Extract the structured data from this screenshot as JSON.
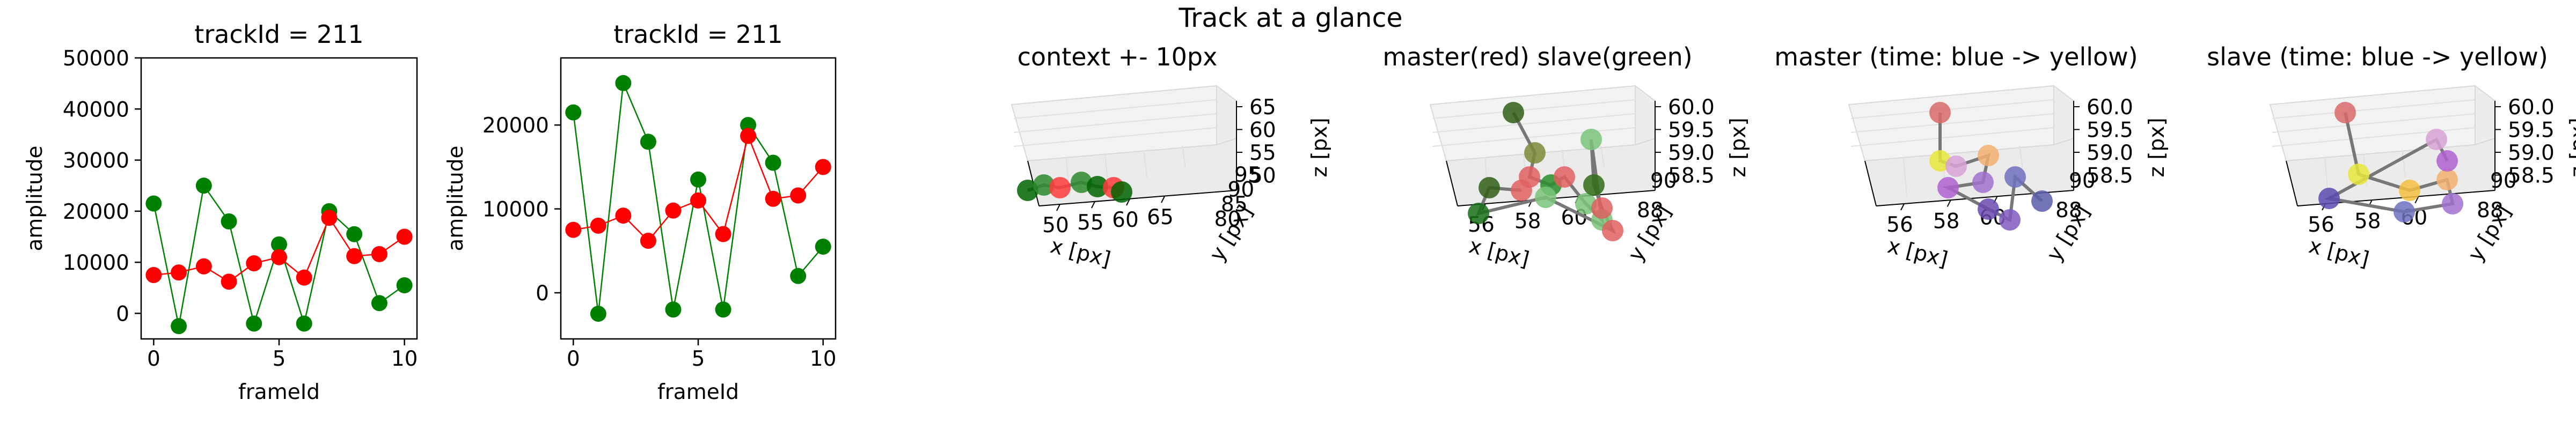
{
  "figure": {
    "suptitle": "Track at a glance"
  },
  "chart_data": [
    {
      "type": "line",
      "title": "trackId = 211",
      "xlabel": "frameId",
      "ylabel": "amplitude",
      "xlim": [
        -0.5,
        10.5
      ],
      "ylim": [
        -5000,
        50000
      ],
      "xticks": [
        0,
        5,
        10
      ],
      "yticks": [
        0,
        10000,
        20000,
        30000,
        40000,
        50000
      ],
      "grid": false,
      "x": [
        0,
        1,
        2,
        3,
        4,
        5,
        6,
        7,
        8,
        9,
        10
      ],
      "series": [
        {
          "color": "#008000",
          "values": [
            21500,
            -2500,
            25000,
            18000,
            -2000,
            13500,
            -2000,
            20000,
            15500,
            2000,
            5500
          ]
        },
        {
          "color": "#ff0000",
          "values": [
            7500,
            8000,
            9200,
            6200,
            9800,
            11000,
            7000,
            18700,
            11200,
            11600,
            15000
          ]
        }
      ]
    },
    {
      "type": "line",
      "title": "trackId = 211",
      "xlabel": "frameId",
      "ylabel": "amplitude",
      "xlim": [
        -0.5,
        10.5
      ],
      "ylim": [
        -5500,
        28000
      ],
      "xticks": [
        0,
        5,
        10
      ],
      "yticks": [
        0,
        10000,
        20000
      ],
      "grid": false,
      "x": [
        0,
        1,
        2,
        3,
        4,
        5,
        6,
        7,
        8,
        9,
        10
      ],
      "series": [
        {
          "color": "#008000",
          "values": [
            21500,
            -2500,
            25000,
            18000,
            -2000,
            13500,
            -2000,
            20000,
            15500,
            2000,
            5500
          ]
        },
        {
          "color": "#ff0000",
          "values": [
            7500,
            8000,
            9200,
            6200,
            9800,
            11000,
            7000,
            18700,
            11200,
            11600,
            15000
          ]
        }
      ]
    },
    {
      "type": "scatter3d",
      "title": "context +- 10px",
      "xlabel": "x [px]",
      "ylabel": "y [px]",
      "zlabel": "z [px]",
      "xticks": [
        "50",
        "55",
        "60",
        "65"
      ],
      "yticks": [
        "80",
        "85",
        "90",
        "95"
      ],
      "zticks": [
        "50",
        "55",
        "60",
        "65"
      ]
    },
    {
      "type": "scatter3d",
      "title": "master(red) slave(green)",
      "xlabel": "x [px]",
      "ylabel": "y [px]",
      "zlabel": "z [px]",
      "xticks": [
        "56",
        "58",
        "60"
      ],
      "yticks": [
        "88",
        "90"
      ],
      "zticks": [
        "58.5",
        "59.0",
        "59.5",
        "60.0"
      ]
    },
    {
      "type": "scatter3d",
      "title": "master (time: blue -> yellow)",
      "xlabel": "x [px]",
      "ylabel": "y [px]",
      "zlabel": "z [px]",
      "xticks": [
        "56",
        "58",
        "60"
      ],
      "yticks": [
        "88",
        "90"
      ],
      "zticks": [
        "58.5",
        "59.0",
        "59.5",
        "60.0"
      ]
    },
    {
      "type": "scatter3d",
      "title": "slave (time: blue -> yellow)",
      "xlabel": "x [px]",
      "ylabel": "y [px]",
      "zlabel": "z [px]",
      "xticks": [
        "56",
        "58",
        "60"
      ],
      "yticks": [
        "88",
        "90"
      ],
      "zticks": [
        "58.5",
        "59.0",
        "59.5",
        "60.0"
      ]
    }
  ]
}
